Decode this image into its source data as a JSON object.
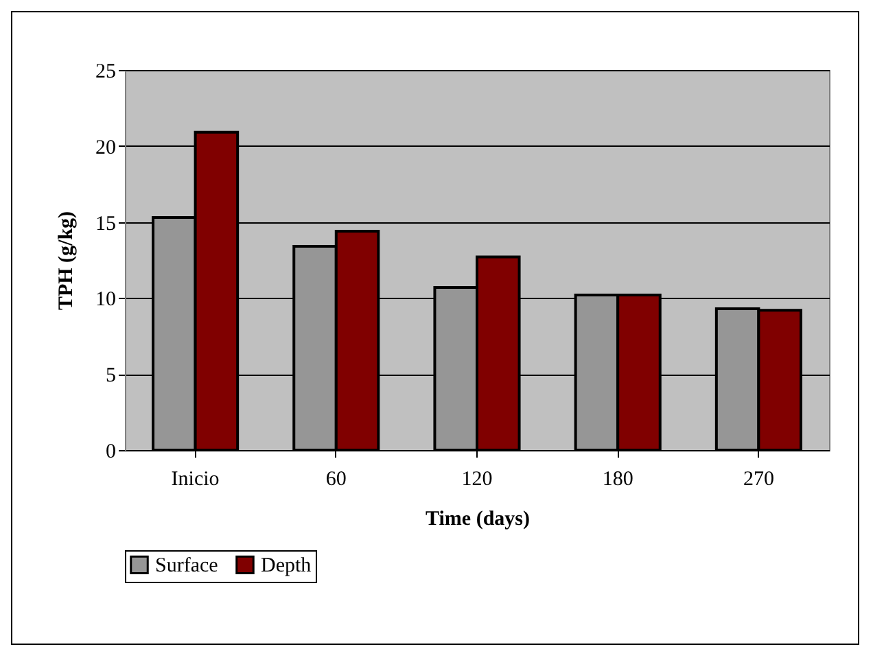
{
  "chart_data": {
    "type": "bar",
    "xlabel": "Time (days)",
    "ylabel": "TPH (g/kg)",
    "categories": [
      "Inicio",
      "60",
      "120",
      "180",
      "270"
    ],
    "series": [
      {
        "name": "Surface",
        "color": "#969696",
        "values": [
          15.3,
          13.4,
          10.7,
          10.2,
          9.3
        ]
      },
      {
        "name": "Depth",
        "color": "#800000",
        "values": [
          20.9,
          14.4,
          12.7,
          10.2,
          9.2
        ]
      }
    ],
    "ylim": [
      0,
      25
    ],
    "yticks": [
      0,
      5,
      10,
      15,
      20,
      25
    ],
    "grid": "y",
    "legend": "bottom"
  }
}
